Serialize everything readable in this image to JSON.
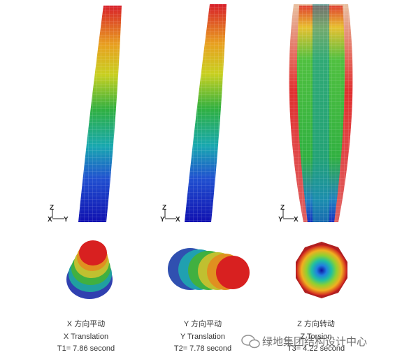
{
  "panels": [
    {
      "elevation_axes": {
        "vertical": "Z",
        "left": "X",
        "right": "Y"
      },
      "caption": {
        "chinese": "X 方向平动",
        "english": "X Translation",
        "period": "T1= 7.86 second"
      }
    },
    {
      "elevation_axes": {
        "vertical": "Z",
        "left": "Y",
        "right": "X"
      },
      "caption": {
        "chinese": "Y 方向平动",
        "english": "Y Translation",
        "period": "T2= 7.78 second"
      }
    },
    {
      "elevation_axes": {
        "vertical": "Z",
        "left": "Y",
        "right": "X"
      },
      "caption": {
        "chinese": "Z 方向转动",
        "english": "Z Torsion",
        "period": "T3= 4.22 second"
      }
    }
  ],
  "watermark": "绿地集团结构设计中心"
}
